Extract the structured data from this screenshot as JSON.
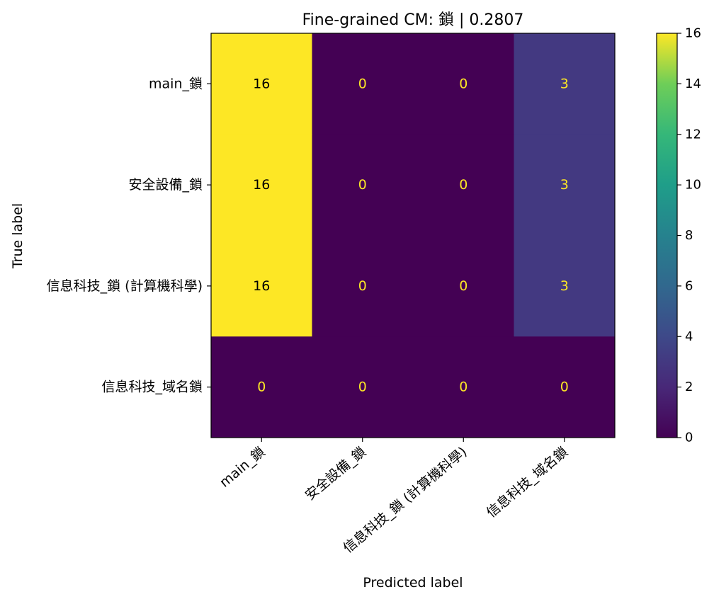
{
  "chart_data": {
    "type": "heatmap",
    "title": "Fine-grained CM: 鎖 | 0.2807",
    "xlabel": "Predicted label",
    "ylabel": "True label",
    "x_categories": [
      "main_鎖",
      "安全設備_鎖",
      "信息科技_鎖 (計算機科學)",
      "信息科技_域名鎖"
    ],
    "y_categories": [
      "main_鎖",
      "安全設備_鎖",
      "信息科技_鎖 (計算機科學)",
      "信息科技_域名鎖"
    ],
    "values": [
      [
        16,
        0,
        0,
        3
      ],
      [
        16,
        0,
        0,
        3
      ],
      [
        16,
        0,
        0,
        3
      ],
      [
        0,
        0,
        0,
        0
      ]
    ],
    "colorbar": {
      "colormap": "viridis",
      "vmin": 0,
      "vmax": 16,
      "ticks": [
        0,
        2,
        4,
        6,
        8,
        10,
        12,
        14,
        16
      ]
    },
    "text_color_dark": "#000000",
    "text_color_light": "#fde725",
    "grid": false
  }
}
